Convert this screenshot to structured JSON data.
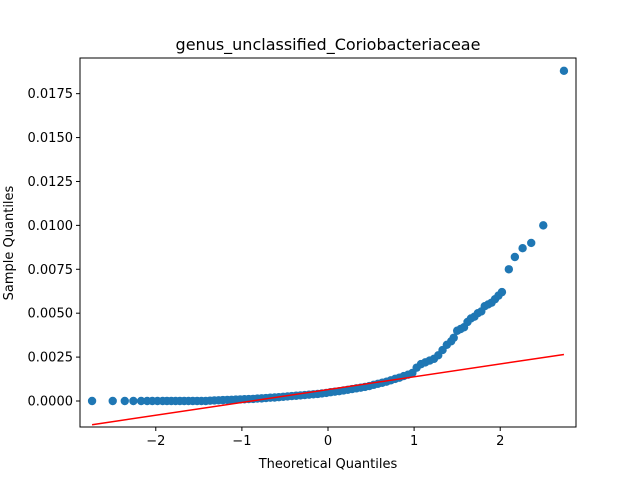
{
  "chart_data": {
    "type": "scatter",
    "title": "genus_unclassified_Coriobacteriaceae",
    "xlabel": "Theoretical Quantiles",
    "ylabel": "Sample Quantiles",
    "xlim": [
      -2.88,
      2.88
    ],
    "ylim": [
      -0.00148,
      0.01953
    ],
    "x_ticks": [
      -2,
      -1,
      0,
      1,
      2
    ],
    "x_tick_labels": [
      "−2",
      "−1",
      "0",
      "1",
      "2"
    ],
    "y_ticks": [
      0.0,
      0.0025,
      0.005,
      0.0075,
      0.01,
      0.0125,
      0.015,
      0.0175
    ],
    "y_tick_labels": [
      "0.0000",
      "0.0025",
      "0.0050",
      "0.0075",
      "0.0100",
      "0.0125",
      "0.0150",
      "0.0175"
    ],
    "grid": false,
    "colors": {
      "points": "#1f77b4",
      "reference_line": "#ff0000",
      "axes": "#000000"
    },
    "series": [
      {
        "kind": "points",
        "x": [
          -2.74,
          -2.5,
          -2.36,
          -2.26,
          -2.17,
          -2.1,
          -2.04,
          -1.98,
          -1.92,
          -1.87,
          -1.82,
          -1.77,
          -1.72,
          -1.67,
          -1.62,
          -1.57,
          -1.52,
          -1.47,
          -1.42,
          -1.37,
          -1.32,
          -1.27,
          -1.22,
          -1.17,
          -1.12,
          -1.07,
          -1.02,
          -0.97,
          -0.92,
          -0.87,
          -0.82,
          -0.77,
          -0.72,
          -0.67,
          -0.62,
          -0.57,
          -0.52,
          -0.47,
          -0.42,
          -0.37,
          -0.32,
          -0.27,
          -0.22,
          -0.17,
          -0.12,
          -0.07,
          -0.02,
          0.03,
          0.08,
          0.13,
          0.18,
          0.23,
          0.28,
          0.33,
          0.38,
          0.43,
          0.48,
          0.53,
          0.58,
          0.63,
          0.68,
          0.73,
          0.78,
          0.83,
          0.88,
          0.93,
          0.98,
          1.03,
          1.08,
          1.13,
          1.18,
          1.23,
          1.28,
          1.33,
          1.38,
          1.43,
          1.46,
          1.5,
          1.54,
          1.58,
          1.62,
          1.66,
          1.7,
          1.74,
          1.78,
          1.82,
          1.86,
          1.9,
          1.94,
          1.98,
          2.02,
          2.1,
          2.17,
          2.26,
          2.36,
          2.5,
          2.74
        ],
        "y": [
          0.0,
          0.0,
          0.0,
          0.0,
          0.0,
          0.0,
          0.0,
          0.0,
          0.0,
          0.0,
          0.0,
          0.0,
          0.0,
          0.0,
          0.0,
          0.0,
          0.0,
          0.0,
          0.0,
          2e-05,
          3e-05,
          4e-05,
          5e-05,
          6e-05,
          7e-05,
          8e-05,
          9e-05,
          0.0001,
          0.00011,
          0.00012,
          0.00014,
          0.00015,
          0.00017,
          0.00019,
          0.0002,
          0.00022,
          0.00024,
          0.00026,
          0.00028,
          0.0003,
          0.00032,
          0.00034,
          0.00036,
          0.00038,
          0.0004,
          0.00043,
          0.00046,
          0.0005,
          0.00053,
          0.00056,
          0.0006,
          0.00064,
          0.00068,
          0.00072,
          0.00076,
          0.0008,
          0.00085,
          0.00092,
          0.00098,
          0.00104,
          0.0011,
          0.00118,
          0.00126,
          0.00133,
          0.00142,
          0.0015,
          0.0016,
          0.0019,
          0.0021,
          0.0022,
          0.0023,
          0.0024,
          0.0026,
          0.0029,
          0.0032,
          0.0034,
          0.0036,
          0.004,
          0.0041,
          0.0042,
          0.0045,
          0.0047,
          0.0048,
          0.005,
          0.0051,
          0.0054,
          0.0055,
          0.0056,
          0.0058,
          0.006,
          0.0062,
          0.0075,
          0.0082,
          0.0087,
          0.009,
          0.01,
          0.0188
        ]
      },
      {
        "kind": "reference-line",
        "x": [
          -2.74,
          2.74
        ],
        "y": [
          -0.00135,
          0.00265
        ]
      }
    ]
  }
}
